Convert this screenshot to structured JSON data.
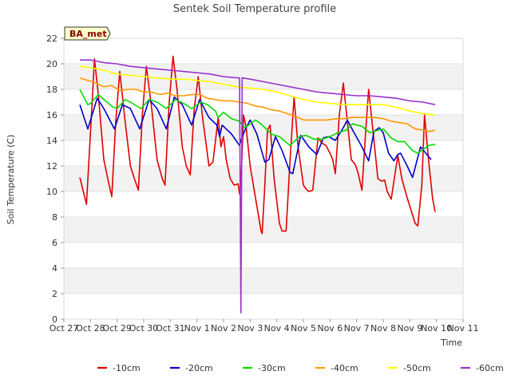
{
  "chart_data": {
    "type": "line",
    "title": "Sentek Soil Temperature profile",
    "xlabel": "Time",
    "ylabel": "Soil Temperature (C)",
    "site_badge": "BA_met",
    "ylim": [
      0,
      22
    ],
    "yticks": [
      0,
      2,
      4,
      6,
      8,
      10,
      12,
      14,
      16,
      18,
      20,
      22
    ],
    "xlim": [
      0,
      15
    ],
    "xticks": [
      {
        "v": 0,
        "label": "Oct 27"
      },
      {
        "v": 1,
        "label": "Oct 28"
      },
      {
        "v": 2,
        "label": "Oct 29"
      },
      {
        "v": 3,
        "label": "Oct 30"
      },
      {
        "v": 4,
        "label": "Oct 31"
      },
      {
        "v": 5,
        "label": "Nov 1"
      },
      {
        "v": 6,
        "label": "Nov 2"
      },
      {
        "v": 7,
        "label": "Nov 3"
      },
      {
        "v": 8,
        "label": "Nov 4"
      },
      {
        "v": 9,
        "label": "Nov 5"
      },
      {
        "v": 10,
        "label": "Nov 6"
      },
      {
        "v": 11,
        "label": "Nov 7"
      },
      {
        "v": 12,
        "label": "Nov 8"
      },
      {
        "v": 13,
        "label": "Nov 9"
      },
      {
        "v": 14,
        "label": "Nov 10"
      },
      {
        "v": 15,
        "label": "Nov 11"
      }
    ],
    "grid": "horizontal bands",
    "legend_position": "bottom",
    "series": [
      {
        "name": "-10cm",
        "color": "#e00000",
        "points": [
          [
            0.6,
            11.1
          ],
          [
            0.85,
            9.0
          ],
          [
            1.05,
            16.5
          ],
          [
            1.15,
            20.4
          ],
          [
            1.3,
            17.5
          ],
          [
            1.5,
            12.5
          ],
          [
            1.65,
            11.0
          ],
          [
            1.8,
            9.6
          ],
          [
            1.95,
            15.5
          ],
          [
            2.1,
            19.4
          ],
          [
            2.3,
            15.5
          ],
          [
            2.5,
            12.0
          ],
          [
            2.65,
            11.0
          ],
          [
            2.8,
            10.1
          ],
          [
            2.95,
            16.0
          ],
          [
            3.1,
            19.8
          ],
          [
            3.3,
            16.5
          ],
          [
            3.5,
            12.5
          ],
          [
            3.7,
            11.0
          ],
          [
            3.8,
            10.5
          ],
          [
            3.95,
            16.8
          ],
          [
            4.1,
            20.6
          ],
          [
            4.25,
            18.0
          ],
          [
            4.45,
            13.5
          ],
          [
            4.6,
            12.0
          ],
          [
            4.75,
            11.3
          ],
          [
            4.9,
            16.5
          ],
          [
            5.05,
            19.0
          ],
          [
            5.2,
            16.0
          ],
          [
            5.45,
            12.0
          ],
          [
            5.6,
            12.3
          ],
          [
            5.8,
            15.8
          ],
          [
            5.9,
            13.5
          ],
          [
            6.0,
            14.3
          ],
          [
            6.1,
            12.5
          ],
          [
            6.25,
            11.0
          ],
          [
            6.4,
            10.5
          ],
          [
            6.55,
            10.6
          ],
          [
            6.6,
            9.8
          ],
          [
            6.65,
            10.5
          ],
          [
            6.75,
            16.0
          ],
          [
            6.85,
            15.0
          ],
          [
            7.0,
            12.0
          ],
          [
            7.2,
            9.5
          ],
          [
            7.4,
            7.0
          ],
          [
            7.45,
            6.7
          ],
          [
            7.55,
            10.5
          ],
          [
            7.65,
            14.8
          ],
          [
            7.75,
            15.2
          ],
          [
            7.9,
            11.0
          ],
          [
            8.1,
            7.5
          ],
          [
            8.2,
            6.9
          ],
          [
            8.35,
            6.9
          ],
          [
            8.5,
            12.5
          ],
          [
            8.65,
            17.4
          ],
          [
            8.8,
            13.5
          ],
          [
            9.0,
            10.5
          ],
          [
            9.1,
            10.2
          ],
          [
            9.2,
            10.0
          ],
          [
            9.35,
            10.1
          ],
          [
            9.55,
            14.2
          ],
          [
            9.7,
            13.8
          ],
          [
            9.85,
            13.6
          ],
          [
            10.0,
            13.0
          ],
          [
            10.1,
            12.5
          ],
          [
            10.2,
            11.4
          ],
          [
            10.35,
            16.0
          ],
          [
            10.5,
            18.5
          ],
          [
            10.65,
            15.5
          ],
          [
            10.8,
            12.5
          ],
          [
            10.95,
            12.1
          ],
          [
            11.05,
            11.5
          ],
          [
            11.2,
            10.1
          ],
          [
            11.35,
            15.0
          ],
          [
            11.45,
            18.0
          ],
          [
            11.6,
            15.0
          ],
          [
            11.8,
            11.0
          ],
          [
            11.95,
            10.8
          ],
          [
            12.05,
            10.9
          ],
          [
            12.15,
            10.0
          ],
          [
            12.3,
            9.4
          ],
          [
            12.45,
            11.5
          ],
          [
            12.55,
            12.8
          ],
          [
            12.7,
            11.0
          ],
          [
            12.9,
            9.5
          ],
          [
            13.05,
            8.5
          ],
          [
            13.2,
            7.5
          ],
          [
            13.3,
            7.3
          ],
          [
            13.45,
            10.5
          ],
          [
            13.55,
            16.0
          ],
          [
            13.7,
            12.5
          ],
          [
            13.85,
            9.5
          ],
          [
            13.95,
            8.4
          ]
        ]
      },
      {
        "name": "-20cm",
        "color": "#0000cc",
        "points": [
          [
            0.6,
            16.8
          ],
          [
            0.9,
            14.9
          ],
          [
            1.25,
            17.3
          ],
          [
            1.5,
            16.5
          ],
          [
            1.9,
            14.9
          ],
          [
            2.2,
            16.8
          ],
          [
            2.5,
            16.5
          ],
          [
            2.85,
            14.9
          ],
          [
            3.2,
            17.2
          ],
          [
            3.5,
            16.5
          ],
          [
            3.85,
            14.9
          ],
          [
            4.15,
            17.4
          ],
          [
            4.45,
            16.8
          ],
          [
            4.8,
            15.2
          ],
          [
            5.1,
            17.2
          ],
          [
            5.45,
            15.8
          ],
          [
            5.75,
            15.2
          ],
          [
            5.85,
            14.3
          ],
          [
            5.95,
            15.2
          ],
          [
            6.3,
            14.5
          ],
          [
            6.6,
            13.6
          ],
          [
            6.65,
            14.0
          ],
          [
            6.8,
            14.8
          ],
          [
            7.0,
            15.6
          ],
          [
            7.25,
            14.5
          ],
          [
            7.55,
            12.3
          ],
          [
            7.7,
            12.5
          ],
          [
            7.95,
            14.3
          ],
          [
            8.2,
            13.2
          ],
          [
            8.5,
            11.5
          ],
          [
            8.6,
            11.4
          ],
          [
            8.9,
            14.4
          ],
          [
            9.2,
            13.5
          ],
          [
            9.5,
            12.9
          ],
          [
            9.75,
            14.2
          ],
          [
            9.95,
            14.3
          ],
          [
            10.2,
            14.0
          ],
          [
            10.5,
            15.0
          ],
          [
            10.65,
            15.6
          ],
          [
            10.8,
            15.0
          ],
          [
            11.2,
            13.5
          ],
          [
            11.45,
            12.4
          ],
          [
            11.65,
            14.7
          ],
          [
            11.85,
            15.0
          ],
          [
            12.0,
            14.6
          ],
          [
            12.2,
            13.0
          ],
          [
            12.4,
            12.4
          ],
          [
            12.55,
            12.9
          ],
          [
            12.65,
            13.0
          ],
          [
            12.9,
            12.0
          ],
          [
            13.1,
            11.1
          ],
          [
            13.4,
            13.5
          ],
          [
            13.6,
            13.0
          ],
          [
            13.8,
            12.5
          ]
        ]
      },
      {
        "name": "-30cm",
        "color": "#00dd00",
        "points": [
          [
            0.6,
            18.0
          ],
          [
            0.9,
            16.8
          ],
          [
            1.0,
            16.9
          ],
          [
            1.3,
            17.6
          ],
          [
            1.5,
            17.2
          ],
          [
            1.85,
            16.6
          ],
          [
            2.0,
            16.5
          ],
          [
            2.3,
            17.2
          ],
          [
            2.5,
            17.0
          ],
          [
            2.9,
            16.5
          ],
          [
            3.2,
            17.2
          ],
          [
            3.5,
            17.0
          ],
          [
            3.85,
            16.5
          ],
          [
            4.2,
            17.2
          ],
          [
            4.5,
            16.9
          ],
          [
            4.8,
            16.5
          ],
          [
            5.15,
            17.0
          ],
          [
            5.4,
            16.8
          ],
          [
            5.7,
            16.3
          ],
          [
            5.8,
            15.8
          ],
          [
            6.0,
            16.2
          ],
          [
            6.3,
            15.7
          ],
          [
            6.6,
            15.5
          ],
          [
            6.8,
            15.0
          ],
          [
            7.2,
            15.6
          ],
          [
            7.4,
            15.3
          ],
          [
            7.8,
            14.5
          ],
          [
            8.1,
            14.3
          ],
          [
            8.5,
            13.6
          ],
          [
            8.85,
            14.3
          ],
          [
            9.1,
            14.4
          ],
          [
            9.4,
            14.1
          ],
          [
            9.7,
            14.1
          ],
          [
            10.0,
            14.3
          ],
          [
            10.3,
            14.6
          ],
          [
            10.6,
            14.8
          ],
          [
            10.85,
            15.3
          ],
          [
            11.2,
            15.1
          ],
          [
            11.5,
            14.6
          ],
          [
            11.8,
            14.8
          ],
          [
            12.0,
            14.9
          ],
          [
            12.3,
            14.2
          ],
          [
            12.55,
            13.9
          ],
          [
            12.8,
            13.9
          ],
          [
            13.1,
            13.2
          ],
          [
            13.3,
            13.0
          ],
          [
            13.5,
            13.3
          ],
          [
            13.7,
            13.6
          ],
          [
            13.95,
            13.7
          ]
        ]
      },
      {
        "name": "-40cm",
        "color": "#ff9900",
        "points": [
          [
            0.6,
            18.9
          ],
          [
            0.9,
            18.7
          ],
          [
            1.2,
            18.5
          ],
          [
            1.5,
            18.2
          ],
          [
            1.8,
            18.3
          ],
          [
            2.1,
            17.9
          ],
          [
            2.4,
            18.0
          ],
          [
            2.7,
            18.0
          ],
          [
            3.0,
            17.8
          ],
          [
            3.3,
            17.8
          ],
          [
            3.6,
            17.6
          ],
          [
            3.9,
            17.7
          ],
          [
            4.2,
            17.5
          ],
          [
            4.5,
            17.5
          ],
          [
            4.8,
            17.6
          ],
          [
            5.1,
            17.6
          ],
          [
            5.4,
            17.3
          ],
          [
            5.7,
            17.2
          ],
          [
            6.0,
            17.1
          ],
          [
            6.3,
            17.1
          ],
          [
            6.6,
            17.0
          ],
          [
            6.9,
            16.9
          ],
          [
            7.2,
            16.7
          ],
          [
            7.5,
            16.6
          ],
          [
            7.8,
            16.4
          ],
          [
            8.1,
            16.3
          ],
          [
            8.4,
            16.1
          ],
          [
            8.7,
            15.9
          ],
          [
            9.0,
            15.6
          ],
          [
            9.3,
            15.6
          ],
          [
            9.6,
            15.6
          ],
          [
            9.9,
            15.6
          ],
          [
            10.2,
            15.7
          ],
          [
            10.5,
            15.7
          ],
          [
            10.8,
            15.8
          ],
          [
            11.1,
            15.8
          ],
          [
            11.4,
            15.8
          ],
          [
            11.7,
            15.8
          ],
          [
            12.0,
            15.7
          ],
          [
            12.3,
            15.5
          ],
          [
            12.6,
            15.4
          ],
          [
            12.9,
            15.3
          ],
          [
            13.2,
            14.9
          ],
          [
            13.5,
            14.8
          ],
          [
            13.7,
            14.7
          ],
          [
            13.95,
            14.8
          ]
        ]
      },
      {
        "name": "-50cm",
        "color": "#ffff00",
        "points": [
          [
            0.6,
            19.8
          ],
          [
            1.0,
            19.7
          ],
          [
            1.5,
            19.5
          ],
          [
            2.0,
            19.2
          ],
          [
            2.5,
            19.1
          ],
          [
            3.0,
            19.0
          ],
          [
            3.5,
            18.9
          ],
          [
            4.0,
            18.8
          ],
          [
            4.5,
            18.8
          ],
          [
            5.0,
            18.7
          ],
          [
            5.5,
            18.6
          ],
          [
            6.0,
            18.4
          ],
          [
            6.5,
            18.2
          ],
          [
            7.0,
            18.1
          ],
          [
            7.5,
            18.0
          ],
          [
            8.0,
            17.8
          ],
          [
            8.5,
            17.5
          ],
          [
            9.0,
            17.2
          ],
          [
            9.5,
            17.0
          ],
          [
            10.0,
            16.9
          ],
          [
            10.5,
            16.8
          ],
          [
            11.0,
            16.8
          ],
          [
            11.5,
            16.8
          ],
          [
            12.0,
            16.8
          ],
          [
            12.5,
            16.6
          ],
          [
            13.0,
            16.3
          ],
          [
            13.5,
            16.1
          ],
          [
            13.95,
            16.0
          ]
        ]
      },
      {
        "name": "-60cm",
        "color": "#9933cc",
        "points": [
          [
            0.6,
            20.3
          ],
          [
            1.0,
            20.3
          ],
          [
            1.5,
            20.1
          ],
          [
            2.0,
            20.0
          ],
          [
            2.5,
            19.8
          ],
          [
            3.0,
            19.7
          ],
          [
            3.5,
            19.6
          ],
          [
            4.0,
            19.5
          ],
          [
            4.5,
            19.4
          ],
          [
            5.0,
            19.3
          ],
          [
            5.5,
            19.2
          ],
          [
            6.0,
            19.0
          ],
          [
            6.5,
            18.9
          ],
          [
            6.6,
            18.9
          ],
          [
            6.65,
            0.5
          ],
          [
            6.7,
            18.9
          ],
          [
            7.0,
            18.8
          ],
          [
            7.5,
            18.6
          ],
          [
            8.0,
            18.4
          ],
          [
            8.5,
            18.2
          ],
          [
            9.0,
            18.0
          ],
          [
            9.5,
            17.8
          ],
          [
            10.0,
            17.7
          ],
          [
            10.5,
            17.6
          ],
          [
            11.0,
            17.5
          ],
          [
            11.5,
            17.5
          ],
          [
            12.0,
            17.4
          ],
          [
            12.5,
            17.3
          ],
          [
            13.0,
            17.1
          ],
          [
            13.5,
            17.0
          ],
          [
            13.95,
            16.8
          ]
        ]
      }
    ]
  }
}
